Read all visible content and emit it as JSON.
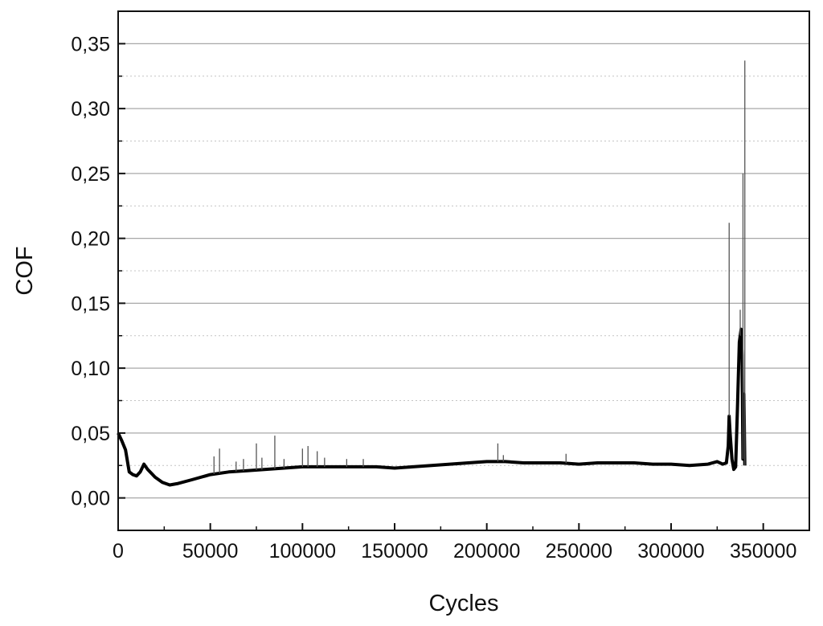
{
  "chart_data": {
    "type": "line",
    "title": "",
    "xlabel": "Cycles",
    "ylabel": "COF",
    "xlim": [
      0,
      375000
    ],
    "ylim": [
      -0.025,
      0.375
    ],
    "x_ticks": [
      0,
      50000,
      100000,
      150000,
      200000,
      250000,
      300000,
      350000
    ],
    "x_tick_labels": [
      "0",
      "50000",
      "100000",
      "150000",
      "200000",
      "250000",
      "300000",
      "350000"
    ],
    "y_ticks": [
      0.0,
      0.05,
      0.1,
      0.15,
      0.2,
      0.25,
      0.3,
      0.35
    ],
    "y_tick_labels": [
      "0,00",
      "0,05",
      "0,10",
      "0,15",
      "0,20",
      "0,25",
      "0,30",
      "0,35"
    ],
    "grid": {
      "major_y": true,
      "minor_y": true,
      "x": false
    },
    "series": [
      {
        "color": "#000000",
        "x": [
          0,
          2000,
          4000,
          6000,
          8000,
          10000,
          12000,
          14000,
          16000,
          18000,
          20000,
          24000,
          28000,
          32000,
          40000,
          50000,
          60000,
          70000,
          80000,
          90000,
          100000,
          110000,
          120000,
          130000,
          140000,
          150000,
          160000,
          170000,
          180000,
          190000,
          200000,
          210000,
          220000,
          230000,
          240000,
          250000,
          260000,
          270000,
          280000,
          290000,
          300000,
          310000,
          320000,
          325000,
          328000,
          330000,
          331000,
          331500,
          332000,
          333000,
          334000,
          335000,
          336000,
          337000,
          338000,
          338500,
          339000,
          339500,
          340000
        ],
        "y": [
          0.05,
          0.044,
          0.037,
          0.02,
          0.018,
          0.017,
          0.02,
          0.026,
          0.022,
          0.019,
          0.016,
          0.012,
          0.01,
          0.011,
          0.014,
          0.018,
          0.02,
          0.021,
          0.022,
          0.023,
          0.024,
          0.024,
          0.024,
          0.024,
          0.024,
          0.023,
          0.024,
          0.025,
          0.026,
          0.027,
          0.028,
          0.028,
          0.027,
          0.027,
          0.027,
          0.026,
          0.027,
          0.027,
          0.027,
          0.026,
          0.026,
          0.025,
          0.026,
          0.028,
          0.026,
          0.027,
          0.04,
          0.063,
          0.05,
          0.03,
          0.022,
          0.024,
          0.07,
          0.12,
          0.13,
          0.11,
          0.03,
          0.08,
          0.025
        ]
      }
    ],
    "spikes": [
      {
        "x": 52000,
        "y": 0.032
      },
      {
        "x": 55000,
        "y": 0.038
      },
      {
        "x": 64000,
        "y": 0.028
      },
      {
        "x": 68000,
        "y": 0.03
      },
      {
        "x": 75000,
        "y": 0.042
      },
      {
        "x": 78000,
        "y": 0.031
      },
      {
        "x": 85000,
        "y": 0.048
      },
      {
        "x": 90000,
        "y": 0.03
      },
      {
        "x": 100000,
        "y": 0.038
      },
      {
        "x": 103000,
        "y": 0.04
      },
      {
        "x": 108000,
        "y": 0.036
      },
      {
        "x": 112000,
        "y": 0.031
      },
      {
        "x": 124000,
        "y": 0.03
      },
      {
        "x": 133000,
        "y": 0.03
      },
      {
        "x": 206000,
        "y": 0.042
      },
      {
        "x": 209000,
        "y": 0.033
      },
      {
        "x": 243000,
        "y": 0.034
      },
      {
        "x": 331500,
        "y": 0.212
      },
      {
        "x": 337500,
        "y": 0.145
      },
      {
        "x": 339000,
        "y": 0.25
      },
      {
        "x": 340000,
        "y": 0.337
      }
    ]
  }
}
